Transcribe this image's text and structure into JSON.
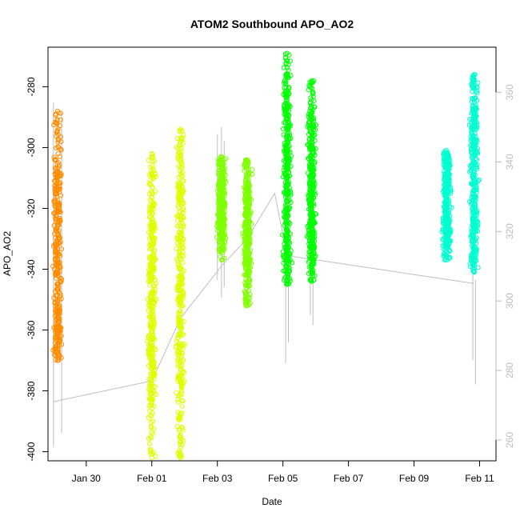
{
  "chart_data": {
    "type": "scatter",
    "title": "ATOM2 Southbound APO_AO2",
    "xlabel": "Date",
    "ylabel": "APO_AO2",
    "x_ticks": [
      "Jan 30",
      "Feb 01",
      "Feb 03",
      "Feb 05",
      "Feb 07",
      "Feb 09",
      "Feb 11"
    ],
    "y_ticks": [
      -280,
      -300,
      -320,
      -340,
      -360,
      -380,
      -400
    ],
    "y2_ticks": [
      360,
      340,
      320,
      300,
      280,
      260
    ],
    "xlim": [
      "2016-01-28T20:00",
      "2016-02-11T12:00"
    ],
    "ylim": [
      -403,
      -267
    ],
    "y2lim": [
      254,
      373
    ],
    "grid": false,
    "series": [
      {
        "color": "#FF8C00",
        "clusters": [
          {
            "x": "2016-01-29T03:00",
            "y_min": -370,
            "y_max": -288,
            "y_dense_min": -361,
            "y_dense_max": -306,
            "y_center": -336
          }
        ]
      },
      {
        "color": "#DDFF00",
        "clusters": [
          {
            "x": "2016-02-01T00:00",
            "y_min": -402,
            "y_max": -302,
            "y_dense_min": -383,
            "y_dense_max": -318,
            "y_center": -354
          },
          {
            "x": "2016-02-01T21:00",
            "y_min": -402,
            "y_max": -294,
            "y_dense_min": -382,
            "y_dense_max": -310,
            "y_center": -348
          }
        ]
      },
      {
        "color": "#80FF00",
        "clusters": [
          {
            "x": "2016-02-03T03:00",
            "y_min": -337,
            "y_max": -303,
            "y_dense_min": -330,
            "y_dense_max": -308,
            "y_center": -321
          },
          {
            "x": "2016-02-03T22:00",
            "y_min": -352,
            "y_max": -304,
            "y_dense_min": -342,
            "y_dense_max": -312,
            "y_center": -326
          }
        ]
      },
      {
        "color": "#00FF00",
        "clusters": [
          {
            "x": "2016-02-05T03:00",
            "y_min": -345,
            "y_max": -269,
            "y_dense_min": -336,
            "y_dense_max": -282,
            "y_center": -308
          },
          {
            "x": "2016-02-05T21:00",
            "y_min": -344,
            "y_max": -278,
            "y_dense_min": -334,
            "y_dense_max": -288,
            "y_center": -313
          }
        ]
      },
      {
        "color": "#00FFD0",
        "clusters": [
          {
            "x": "2016-02-10T00:00",
            "y_min": -337,
            "y_max": -301,
            "y_dense_min": -332,
            "y_dense_max": -305,
            "y_center": -321
          },
          {
            "x": "2016-02-10T20:00",
            "y_min": -341,
            "y_max": -276,
            "y_dense_min": -335,
            "y_dense_max": -286,
            "y_center": -308
          }
        ]
      }
    ],
    "secondary_line": {
      "color": "#BEBEBE",
      "axis": "right",
      "points": [
        {
          "x": "2016-01-29T00:00",
          "y": 271
        },
        {
          "x": "2016-02-01T00:00",
          "y": 277
        },
        {
          "x": "2016-02-01T21:00",
          "y": 295
        },
        {
          "x": "2016-02-03T03:00",
          "y": 310
        },
        {
          "x": "2016-02-03T22:00",
          "y": 318
        },
        {
          "x": "2016-02-04T18:00",
          "y": 331
        },
        {
          "x": "2016-02-05T03:00",
          "y": 313
        },
        {
          "x": "2016-02-05T21:00",
          "y": 312
        },
        {
          "x": "2016-02-10T20:00",
          "y": 305
        }
      ],
      "spikes": [
        {
          "x": "2016-01-29T00:00",
          "y_low": 258,
          "y_high": 357
        },
        {
          "x": "2016-01-29T06:00",
          "y_low": 262,
          "y_high": 354
        },
        {
          "x": "2016-02-03T00:00",
          "y_low": 306,
          "y_high": 348
        },
        {
          "x": "2016-02-03T03:00",
          "y_low": 301,
          "y_high": 350
        },
        {
          "x": "2016-02-03T05:00",
          "y_low": 304,
          "y_high": 346
        },
        {
          "x": "2016-02-03T22:00",
          "y_low": 302,
          "y_high": 337
        },
        {
          "x": "2016-02-04T00:00",
          "y_low": 305,
          "y_high": 333
        },
        {
          "x": "2016-02-05T02:00",
          "y_low": 282,
          "y_high": 353
        },
        {
          "x": "2016-02-05T04:00",
          "y_low": 288,
          "y_high": 348
        },
        {
          "x": "2016-02-05T20:00",
          "y_low": 296,
          "y_high": 340
        },
        {
          "x": "2016-02-05T22:00",
          "y_low": 293,
          "y_high": 336
        },
        {
          "x": "2016-02-10T19:00",
          "y_low": 283,
          "y_high": 314
        },
        {
          "x": "2016-02-10T21:00",
          "y_low": 276,
          "y_high": 306
        }
      ]
    }
  }
}
